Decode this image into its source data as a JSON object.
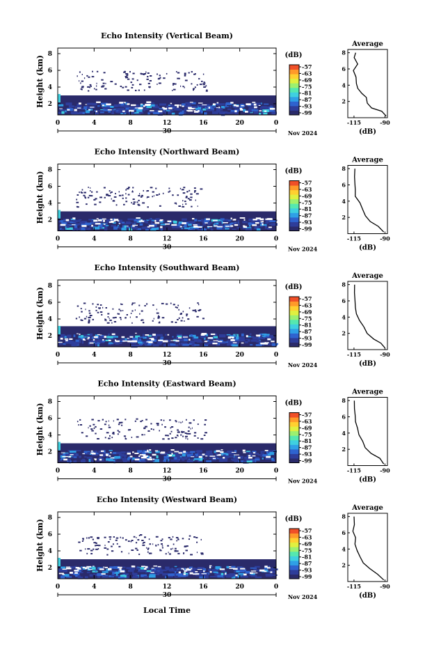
{
  "figure": {
    "xlabel": "Local Time",
    "date_label": "Nov 2024",
    "day_label": "30"
  },
  "colorbar": {
    "unit": "(dB)",
    "ticks": [
      "-57",
      "-63",
      "-69",
      "-75",
      "-81",
      "-87",
      "-93",
      "-99"
    ],
    "colors": [
      "#2a2a6a",
      "#2e3d9a",
      "#2f63cf",
      "#2fa0e6",
      "#3fd0e0",
      "#55e8b0",
      "#9cf070",
      "#e0f040",
      "#ffd030",
      "#ff9a2a",
      "#f05028"
    ]
  },
  "chart_data": [
    {
      "type": "heatmap",
      "title": "Echo Intensity (Vertical Beam)",
      "ylabel": "Height (km)",
      "xlim": [
        0,
        24
      ],
      "ylim": [
        0,
        6
      ],
      "xticks": [
        "0",
        "4",
        "8",
        "12",
        "16",
        "20",
        "0"
      ],
      "yticks": [
        "2",
        "4",
        "6",
        "8"
      ],
      "side_profile": {
        "title": "Average",
        "xlabel": "(dB)",
        "xticks": [
          "-115",
          "-90"
        ],
        "yticks": [
          "2",
          "4",
          "6",
          "8"
        ],
        "profile": [
          [
            -88,
            0.2
          ],
          [
            -92,
            0.8
          ],
          [
            -100,
            1.2
          ],
          [
            -104,
            1.8
          ],
          [
            -106,
            2.5
          ],
          [
            -108,
            3.0
          ],
          [
            -112,
            3.6
          ],
          [
            -113,
            4.2
          ],
          [
            -114,
            5.0
          ],
          [
            -115,
            5.8
          ],
          [
            -113,
            6.6
          ],
          [
            -115,
            7.4
          ],
          [
            -114,
            8.0
          ]
        ]
      }
    },
    {
      "type": "heatmap",
      "title": "Echo Intensity (Northward Beam)",
      "ylabel": "Height (km)",
      "xlim": [
        0,
        24
      ],
      "ylim": [
        0,
        6
      ],
      "xticks": [
        "0",
        "4",
        "8",
        "12",
        "16",
        "20",
        "0"
      ],
      "yticks": [
        "2",
        "4",
        "6",
        "8"
      ],
      "side_profile": {
        "title": "Average",
        "xlabel": "(dB)",
        "xticks": [
          "-115",
          "-90"
        ],
        "yticks": [
          "2",
          "4",
          "6",
          "8"
        ],
        "profile": [
          [
            -90,
            0.2
          ],
          [
            -95,
            0.9
          ],
          [
            -102,
            1.5
          ],
          [
            -106,
            2.2
          ],
          [
            -108,
            3.0
          ],
          [
            -111,
            3.8
          ],
          [
            -113,
            4.6
          ],
          [
            -114,
            5.4
          ],
          [
            -115,
            6.2
          ],
          [
            -114,
            7.0
          ],
          [
            -115,
            8.0
          ]
        ]
      }
    },
    {
      "type": "heatmap",
      "title": "Echo Intensity (Southward Beam)",
      "ylabel": "Height (km)",
      "xlim": [
        0,
        24
      ],
      "ylim": [
        0,
        6
      ],
      "xticks": [
        "0",
        "4",
        "8",
        "12",
        "16",
        "20",
        "0"
      ],
      "yticks": [
        "2",
        "4",
        "6",
        "8"
      ],
      "side_profile": {
        "title": "Average",
        "xlabel": "(dB)",
        "xticks": [
          "-115",
          "-90"
        ],
        "yticks": [
          "2",
          "4",
          "6",
          "8"
        ],
        "profile": [
          [
            -89,
            0.2
          ],
          [
            -93,
            0.8
          ],
          [
            -100,
            1.3
          ],
          [
            -105,
            2.0
          ],
          [
            -108,
            2.8
          ],
          [
            -111,
            3.6
          ],
          [
            -113,
            4.4
          ],
          [
            -114,
            5.2
          ],
          [
            -115,
            6.0
          ],
          [
            -114,
            7.0
          ],
          [
            -115,
            8.0
          ]
        ]
      }
    },
    {
      "type": "heatmap",
      "title": "Echo Intensity (Eastward Beam)",
      "ylabel": "Height (km)",
      "xlim": [
        0,
        24
      ],
      "ylim": [
        0,
        6
      ],
      "xticks": [
        "0",
        "4",
        "8",
        "12",
        "16",
        "20",
        "0"
      ],
      "yticks": [
        "2",
        "4",
        "6",
        "8"
      ],
      "side_profile": {
        "title": "Average",
        "xlabel": "(dB)",
        "xticks": [
          "-115",
          "-90"
        ],
        "yticks": [
          "2",
          "4",
          "6",
          "8"
        ],
        "profile": [
          [
            -90,
            0.2
          ],
          [
            -94,
            0.9
          ],
          [
            -101,
            1.5
          ],
          [
            -105,
            2.2
          ],
          [
            -108,
            3.0
          ],
          [
            -111,
            3.8
          ],
          [
            -113,
            4.6
          ],
          [
            -114,
            5.4
          ],
          [
            -115,
            6.2
          ],
          [
            -114,
            7.0
          ],
          [
            -115,
            8.0
          ]
        ]
      }
    },
    {
      "type": "heatmap",
      "title": "Echo Intensity (Westward Beam)",
      "ylabel": "Height (km)",
      "xlim": [
        0,
        24
      ],
      "ylim": [
        0,
        6
      ],
      "xticks": [
        "0",
        "4",
        "8",
        "12",
        "16",
        "20",
        "0"
      ],
      "yticks": [
        "2",
        "4",
        "6",
        "8"
      ],
      "side_profile": {
        "title": "Average",
        "xlabel": "(dB)",
        "xticks": [
          "-115",
          "-90"
        ],
        "yticks": [
          "2",
          "4",
          "6",
          "8"
        ],
        "profile": [
          [
            -90,
            0.2
          ],
          [
            -96,
            0.9
          ],
          [
            -103,
            1.6
          ],
          [
            -107,
            2.3
          ],
          [
            -109,
            3.0
          ],
          [
            -112,
            3.8
          ],
          [
            -114,
            4.6
          ],
          [
            -114,
            5.4
          ],
          [
            -115,
            6.2
          ],
          [
            -114,
            7.0
          ],
          [
            -115,
            8.0
          ]
        ]
      }
    }
  ]
}
